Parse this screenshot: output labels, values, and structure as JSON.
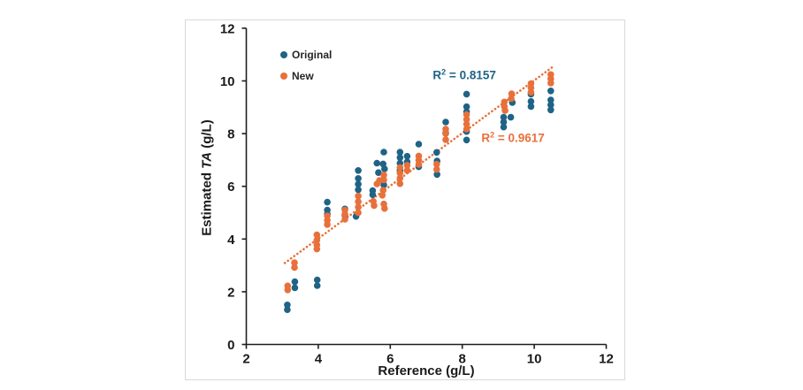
{
  "chart_data": {
    "type": "scatter",
    "title": "",
    "xlabel": "Reference (g/L)",
    "ylabel": "Estimated TA (g/L)",
    "ylabel_parts": {
      "pre": "Estimated ",
      "italic": "TA",
      "post": " (g/L)"
    },
    "xlim": [
      2,
      12
    ],
    "ylim": [
      0,
      12
    ],
    "x_ticks": [
      2,
      4,
      6,
      8,
      10,
      12
    ],
    "y_ticks": [
      0,
      2,
      4,
      6,
      8,
      10,
      12
    ],
    "grid": false,
    "legend_position": "top-left-inside",
    "axis_color": "#1e1e1e",
    "tick_label_color": "#1a1a1a",
    "series": [
      {
        "name": "Original",
        "color": "#1f6386",
        "marker": "circle",
        "points": [
          [
            3.14,
            1.5
          ],
          [
            3.14,
            1.32
          ],
          [
            3.35,
            2.38
          ],
          [
            3.35,
            2.15
          ],
          [
            3.97,
            2.45
          ],
          [
            3.97,
            2.23
          ],
          [
            4.25,
            5.4
          ],
          [
            4.25,
            5.1
          ],
          [
            4.25,
            4.95
          ],
          [
            4.74,
            5.14
          ],
          [
            4.74,
            4.9
          ],
          [
            5.11,
            6.6
          ],
          [
            5.11,
            6.3
          ],
          [
            5.11,
            6.08
          ],
          [
            5.11,
            5.87
          ],
          [
            5.05,
            4.86
          ],
          [
            5.63,
            6.88
          ],
          [
            5.67,
            6.52
          ],
          [
            5.51,
            5.84
          ],
          [
            5.51,
            5.68
          ],
          [
            5.82,
            7.3
          ],
          [
            5.8,
            6.85
          ],
          [
            5.84,
            6.66
          ],
          [
            5.82,
            6.05
          ],
          [
            6.27,
            7.3
          ],
          [
            6.27,
            7.09
          ],
          [
            6.27,
            6.88
          ],
          [
            6.27,
            6.6
          ],
          [
            6.47,
            7.14
          ],
          [
            6.47,
            6.93
          ],
          [
            6.79,
            7.6
          ],
          [
            6.79,
            6.74
          ],
          [
            7.29,
            7.29
          ],
          [
            7.3,
            6.96
          ],
          [
            7.3,
            6.45
          ],
          [
            7.54,
            8.44
          ],
          [
            7.54,
            8.03
          ],
          [
            8.12,
            9.5
          ],
          [
            8.12,
            9.02
          ],
          [
            8.12,
            8.83
          ],
          [
            8.12,
            8.08
          ],
          [
            8.12,
            7.76
          ],
          [
            9.15,
            8.62
          ],
          [
            9.35,
            8.62
          ],
          [
            9.15,
            8.44
          ],
          [
            9.15,
            8.25
          ],
          [
            9.39,
            9.18
          ],
          [
            9.91,
            9.5
          ],
          [
            9.91,
            9.22
          ],
          [
            9.91,
            9.03
          ],
          [
            10.46,
            9.62
          ],
          [
            10.46,
            9.28
          ],
          [
            10.46,
            9.09
          ],
          [
            10.46,
            8.9
          ]
        ]
      },
      {
        "name": "New",
        "color": "#e8703a",
        "marker": "circle",
        "points": [
          [
            3.15,
            2.22
          ],
          [
            3.15,
            2.07
          ],
          [
            3.34,
            3.1
          ],
          [
            3.34,
            2.92
          ],
          [
            3.96,
            4.16
          ],
          [
            3.96,
            3.96
          ],
          [
            3.96,
            3.78
          ],
          [
            3.96,
            3.62
          ],
          [
            4.25,
            4.88
          ],
          [
            4.25,
            4.71
          ],
          [
            4.25,
            4.55
          ],
          [
            4.74,
            5.1
          ],
          [
            4.74,
            4.94
          ],
          [
            4.74,
            4.75
          ],
          [
            5.11,
            5.63
          ],
          [
            5.11,
            5.42
          ],
          [
            5.11,
            5.21
          ],
          [
            5.11,
            5.0
          ],
          [
            5.7,
            6.22
          ],
          [
            5.63,
            6.09
          ],
          [
            5.53,
            5.43
          ],
          [
            5.55,
            5.27
          ],
          [
            5.82,
            6.43
          ],
          [
            5.82,
            6.24
          ],
          [
            5.8,
            5.85
          ],
          [
            5.78,
            5.66
          ],
          [
            5.82,
            5.33
          ],
          [
            5.84,
            5.16
          ],
          [
            6.27,
            6.71
          ],
          [
            6.27,
            6.5
          ],
          [
            6.27,
            6.31
          ],
          [
            6.27,
            6.1
          ],
          [
            6.47,
            6.8
          ],
          [
            6.47,
            6.6
          ],
          [
            6.79,
            7.15
          ],
          [
            6.79,
            6.99
          ],
          [
            6.79,
            6.83
          ],
          [
            7.29,
            6.84
          ],
          [
            7.29,
            6.64
          ],
          [
            7.54,
            8.17
          ],
          [
            7.54,
            8.0
          ],
          [
            7.54,
            7.77
          ],
          [
            8.12,
            8.72
          ],
          [
            8.12,
            8.54
          ],
          [
            8.12,
            8.36
          ],
          [
            8.12,
            8.17
          ],
          [
            9.17,
            9.2
          ],
          [
            9.17,
            9.03
          ],
          [
            9.19,
            8.88
          ],
          [
            9.37,
            9.51
          ],
          [
            9.36,
            9.33
          ],
          [
            9.91,
            9.9
          ],
          [
            9.91,
            9.74
          ],
          [
            9.91,
            9.57
          ],
          [
            10.46,
            10.24
          ],
          [
            10.46,
            10.08
          ],
          [
            10.46,
            9.92
          ]
        ]
      }
    ],
    "trendline": {
      "style": "dotted",
      "color": "#e8703a",
      "from": [
        3.07,
        3.09
      ],
      "to": [
        10.5,
        10.52
      ]
    },
    "annotations": [
      {
        "base": "R",
        "sup": "2",
        "rest": " = 0.8157",
        "color": "#1f6386",
        "x": 8.06,
        "y": 10.22
      },
      {
        "base": "R",
        "sup": "2",
        "rest": " = 0.9617",
        "color": "#e8703a",
        "x": 9.41,
        "y": 7.85
      }
    ]
  }
}
